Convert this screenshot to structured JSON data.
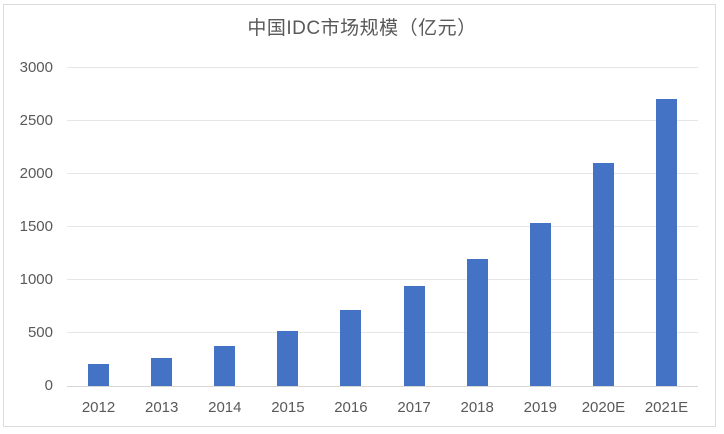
{
  "chart": {
    "title": "中国IDC市场规模（亿元）",
    "colors": {
      "bar": "#4472C4",
      "text": "#595959",
      "gridline": "#E6E6E6",
      "axis_line": "#D6D6D6",
      "frame_border": "#DCDCDC",
      "background": "#FFFFFF"
    }
  },
  "chart_data": {
    "type": "bar",
    "title": "中国IDC市场规模（亿元）",
    "categories": [
      "2012",
      "2013",
      "2014",
      "2015",
      "2016",
      "2017",
      "2018",
      "2019",
      "2020E",
      "2021E"
    ],
    "values": [
      210,
      265,
      375,
      520,
      715,
      945,
      1200,
      1540,
      2105,
      2710
    ],
    "xlabel": "",
    "ylabel": "",
    "ylim": [
      0,
      3000
    ],
    "y_ticks": [
      0,
      500,
      1000,
      1500,
      2000,
      2500,
      3000
    ],
    "grid": true,
    "legend": false,
    "bar_color": "#4472C4"
  }
}
